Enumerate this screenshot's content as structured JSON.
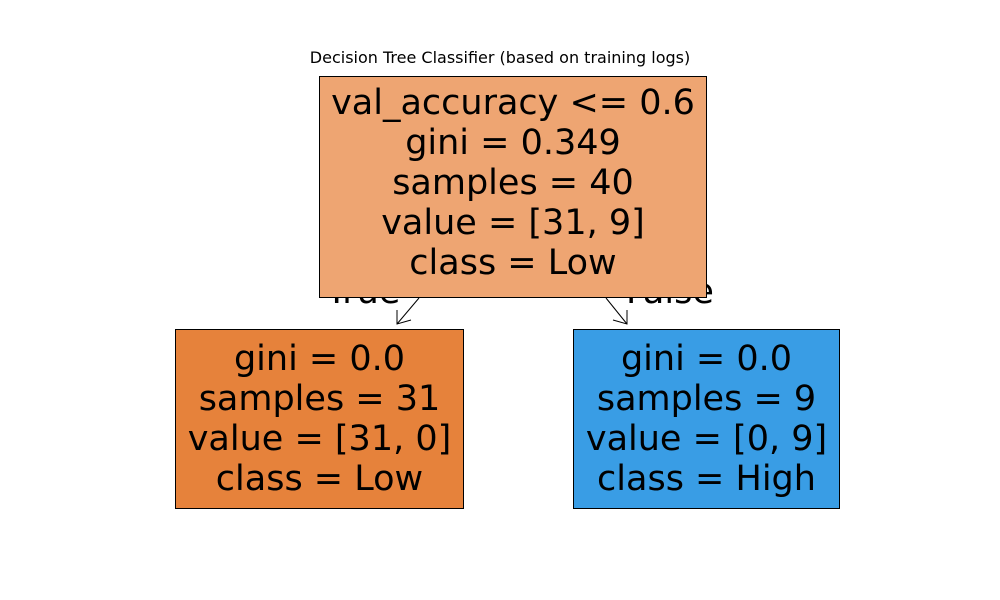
{
  "title": "Decision Tree Classifier (based on training logs)",
  "edges": {
    "true_label": "True",
    "false_label": "False"
  },
  "nodes": {
    "root": {
      "lines": [
        "val_accuracy <= 0.6",
        "gini = 0.349",
        "samples = 40",
        "value = [31, 9]",
        "class = Low"
      ],
      "color": "#eea572"
    },
    "left": {
      "lines": [
        "gini = 0.0",
        "samples = 31",
        "value = [31, 0]",
        "class = Low"
      ],
      "color": "#e6823b"
    },
    "right": {
      "lines": [
        "gini = 0.0",
        "samples = 9",
        "value = [0, 9]",
        "class = High"
      ],
      "color": "#399de5"
    }
  }
}
